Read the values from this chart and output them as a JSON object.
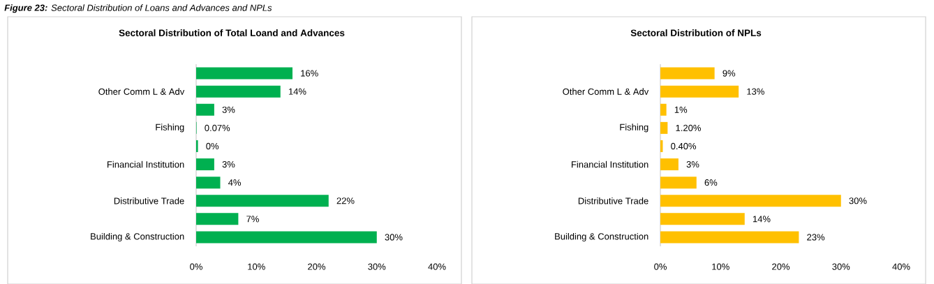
{
  "chart_data": [
    {
      "type": "bar",
      "orientation": "horizontal",
      "title": "Sectoral Distribution of Total Loand and Advances",
      "annotations": [
        "**Figure 23:** Sectoral Distribution of Loans and Advances and NPLs"
      ],
      "categories": [
        null,
        "Other Comm L & Adv",
        null,
        "Fishing",
        null,
        "Financial Institution",
        null,
        "Distributive Trade",
        null,
        "Building & Construction"
      ],
      "values": [
        16,
        14,
        3,
        0.07,
        0.3,
        3,
        4,
        22,
        7,
        30
      ],
      "value_labels": [
        "16%",
        "14%",
        "3%",
        "0.07%",
        "0%",
        "3%",
        "4%",
        "22%",
        "7%",
        "30%"
      ],
      "color": "#00b050",
      "xlim": [
        0,
        40
      ],
      "xticks": [
        {
          "value": 0,
          "label": "0%"
        },
        {
          "value": 10,
          "label": "10%"
        },
        {
          "value": 20,
          "label": "20%"
        },
        {
          "value": 30,
          "label": "30%"
        },
        {
          "value": 40,
          "label": "40%"
        }
      ]
    },
    {
      "type": "bar",
      "orientation": "horizontal",
      "title": "Sectoral Distribution of NPLs",
      "categories": [
        null,
        "Other Comm L & Adv",
        null,
        "Fishing",
        null,
        "Financial Institution",
        null,
        "Distributive Trade",
        null,
        "Building & Construction"
      ],
      "values": [
        9,
        13,
        1,
        1.2,
        0.4,
        3,
        6,
        30,
        14,
        23
      ],
      "value_labels": [
        "9%",
        "13%",
        "1%",
        "1.20%",
        "0.40%",
        "3%",
        "6%",
        "30%",
        "14%",
        "23%"
      ],
      "color": "#ffc000",
      "xlim": [
        0,
        40
      ],
      "xticks": [
        {
          "value": 0,
          "label": "0%"
        },
        {
          "value": 10,
          "label": "10%"
        },
        {
          "value": 20,
          "label": "20%"
        },
        {
          "value": 30,
          "label": "30%"
        },
        {
          "value": 40,
          "label": "40%"
        }
      ]
    }
  ]
}
